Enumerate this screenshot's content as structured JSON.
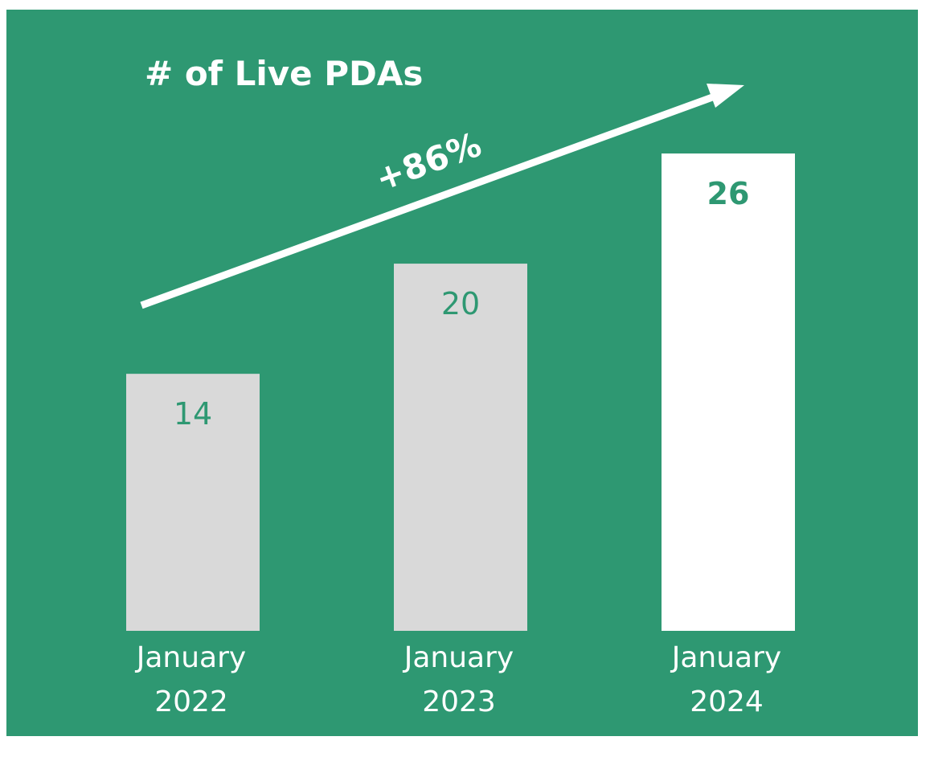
{
  "chart_data": {
    "type": "bar",
    "title": "# of Live PDAs",
    "categories": [
      [
        "January",
        "2022"
      ],
      [
        "January",
        "2023"
      ],
      [
        "January",
        "2024"
      ]
    ],
    "values": [
      14,
      20,
      26
    ],
    "value_labels": [
      "14",
      "20",
      "26"
    ],
    "highlight_index": 2,
    "annotation": "+86%",
    "xlabel": "",
    "ylabel": "",
    "ylim": [
      0,
      26
    ],
    "grid": false,
    "legend": "none",
    "colors": {
      "background": "#2e9872",
      "bar": "#d9d9d9",
      "bar_highlight": "#ffffff",
      "label": "#2e9872",
      "text": "#ffffff"
    }
  }
}
